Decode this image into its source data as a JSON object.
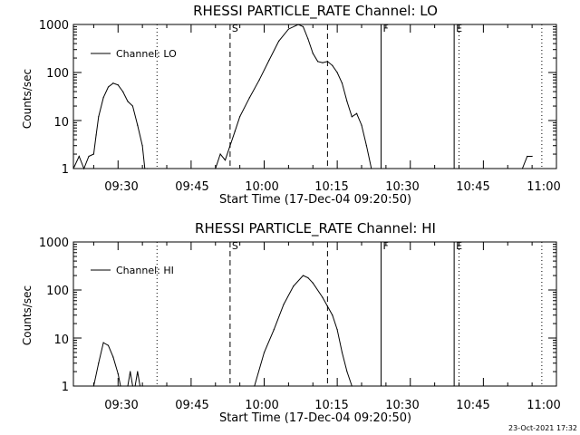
{
  "chart_data": [
    {
      "type": "line",
      "title": "RHESSI PARTICLE_RATE Channel: LO",
      "xlabel": "Start Time (17-Dec-04 09:20:50)",
      "ylabel": "Counts/sec",
      "y_scale": "log",
      "ylim": [
        1,
        1000
      ],
      "y_ticks": [
        "1",
        "10",
        "100",
        "1000"
      ],
      "x_range": [
        "09:20:50",
        "11:00"
      ],
      "x_ticks": [
        "09:30",
        "09:45",
        "10:00",
        "10:15",
        "10:30",
        "10:45",
        "11:00"
      ],
      "legend": {
        "position": "top-left",
        "entries": [
          "Channel: LO"
        ]
      },
      "markers": [
        {
          "label": "S",
          "time": "09:53",
          "style": "dashed"
        },
        {
          "label": "",
          "time": "10:13",
          "style": "dashed"
        },
        {
          "label": "F",
          "time": "10:24",
          "style": "solid"
        },
        {
          "label": "E",
          "time": "10:39",
          "style": "solid"
        },
        {
          "label": "",
          "time": "09:38",
          "style": "dotted"
        },
        {
          "label": "",
          "time": "10:40",
          "style": "dotted"
        },
        {
          "label": "",
          "time": "10:57",
          "style": "dotted"
        }
      ],
      "series": [
        {
          "x": [
            "09:20:50",
            "09:22",
            "09:23",
            "09:24",
            "09:25",
            "09:25:30",
            "09:26",
            "09:27",
            "09:28",
            "09:29",
            "09:30",
            "09:31",
            "09:32",
            "09:33",
            "09:34",
            "09:35",
            "09:35:30",
            "09:36",
            "09:50",
            "09:51",
            "09:52",
            "09:53",
            "09:54",
            "09:55",
            "09:57",
            "09:59",
            "10:01",
            "10:03",
            "10:05",
            "10:07",
            "10:08",
            "10:09",
            "10:10",
            "10:11",
            "10:12",
            "10:13",
            "10:14",
            "10:15",
            "10:16",
            "10:17",
            "10:18",
            "10:19",
            "10:20",
            "10:21",
            "10:22",
            "10:53",
            "10:54",
            "10:55"
          ],
          "values": [
            1,
            1.8,
            1,
            1.8,
            2,
            5,
            12,
            30,
            50,
            60,
            55,
            40,
            25,
            20,
            8,
            3,
            1,
            1,
            1,
            2,
            1.5,
            3,
            6,
            12,
            30,
            70,
            180,
            450,
            800,
            1000,
            900,
            500,
            250,
            170,
            160,
            170,
            140,
            100,
            60,
            25,
            12,
            14,
            8,
            3,
            1,
            1,
            1.8,
            1.8
          ]
        }
      ]
    },
    {
      "type": "line",
      "title": "RHESSI PARTICLE_RATE Channel: HI",
      "xlabel": "Start Time (17-Dec-04 09:20:50)",
      "ylabel": "Counts/sec",
      "y_scale": "log",
      "ylim": [
        1,
        1000
      ],
      "y_ticks": [
        "1",
        "10",
        "100",
        "1000"
      ],
      "x_range": [
        "09:20:50",
        "11:00"
      ],
      "x_ticks": [
        "09:30",
        "09:45",
        "10:00",
        "10:15",
        "10:30",
        "10:45",
        "11:00"
      ],
      "legend": {
        "position": "top-left",
        "entries": [
          "Channel: HI"
        ]
      },
      "markers": [
        {
          "label": "S",
          "time": "09:53",
          "style": "dashed"
        },
        {
          "label": "",
          "time": "10:13",
          "style": "dashed"
        },
        {
          "label": "F",
          "time": "10:24",
          "style": "solid"
        },
        {
          "label": "E",
          "time": "10:39",
          "style": "solid"
        },
        {
          "label": "",
          "time": "09:38",
          "style": "dotted"
        },
        {
          "label": "",
          "time": "10:40",
          "style": "dotted"
        },
        {
          "label": "",
          "time": "10:57",
          "style": "dotted"
        }
      ],
      "series": [
        {
          "x": [
            "09:25",
            "09:26",
            "09:27",
            "09:28",
            "09:29",
            "09:30",
            "09:30:30",
            "09:32",
            "09:32:30",
            "09:33",
            "09:33:30",
            "09:34",
            "09:34:30",
            "09:35",
            "09:58",
            "10:00",
            "10:02",
            "10:04",
            "10:06",
            "10:08",
            "10:09",
            "10:10",
            "10:12",
            "10:14",
            "10:15",
            "10:16",
            "10:17",
            "10:18"
          ],
          "values": [
            1,
            3,
            8,
            7,
            4,
            1.8,
            1,
            1,
            2,
            1,
            1,
            2,
            1,
            1,
            1,
            5,
            15,
            50,
            120,
            200,
            180,
            140,
            70,
            30,
            15,
            5,
            2,
            1
          ]
        }
      ]
    }
  ],
  "timestamp_text": "23-Oct-2021 17:32"
}
